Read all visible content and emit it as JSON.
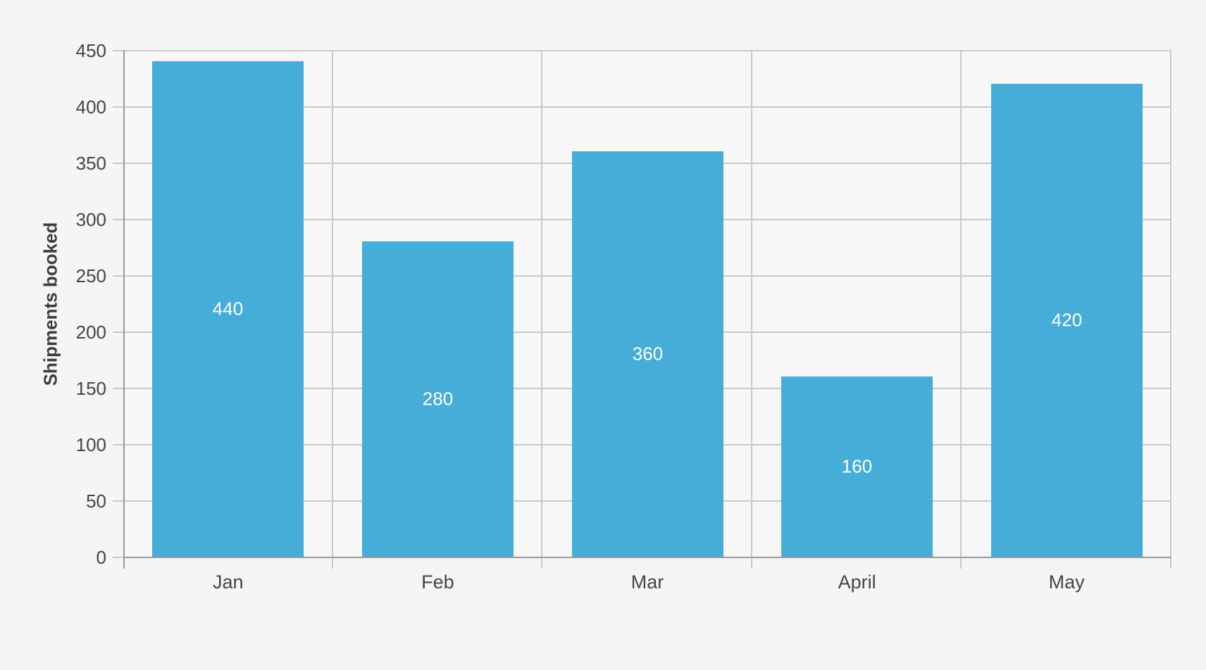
{
  "chart_data": {
    "type": "bar",
    "title": "",
    "categories": [
      "Jan",
      "Feb",
      "Mar",
      "April",
      "May"
    ],
    "values": [
      440,
      280,
      360,
      160,
      420
    ],
    "data_labels": [
      "440",
      "280",
      "360",
      "160",
      "420"
    ],
    "xlabel": "",
    "ylabel": "Shipments booked",
    "ylim": [
      0,
      450
    ],
    "ytick_interval": 50,
    "ytick_labels": [
      "0",
      "50",
      "100",
      "150",
      "200",
      "250",
      "300",
      "350",
      "400",
      "450"
    ],
    "grid": true,
    "category_separators": true,
    "legend_position": "none",
    "colors": {
      "bar": "#45add8",
      "bar_label_text": "#ffffff",
      "axis_line": "#9a9a9a",
      "gridline": "#c9c9c9",
      "tick_text": "#454545",
      "axis_title_text": "#3d3d3d",
      "plot_background": "#f7f7f7",
      "page_background": "#f5f5f5"
    }
  }
}
